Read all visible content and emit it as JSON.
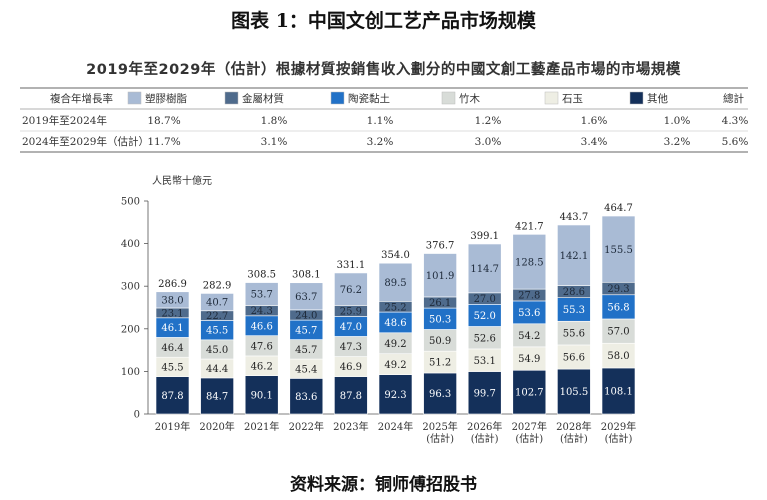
{
  "figure_title": "图表 1：中国文创工艺产品市场规模",
  "source": "资料来源：铜师傅招股书",
  "table": {
    "header_label": "複合年增長率",
    "total_label": "總計",
    "rows": [
      {
        "label": "2019年至2024年",
        "values": [
          "18.7%",
          "1.8%",
          "1.1%",
          "1.2%",
          "1.6%",
          "1.0%",
          "4.3%"
        ]
      },
      {
        "label": "2024年至2029年（估計）",
        "values": [
          "11.7%",
          "3.1%",
          "3.2%",
          "3.0%",
          "3.4%",
          "3.2%",
          "5.6%"
        ]
      }
    ]
  },
  "chart_data": {
    "type": "bar",
    "stacked": true,
    "title": "2019年至2029年（估計）根據材質按銷售收入劃分的中國文創工藝產品市場的市場規模",
    "ylabel": "人民幣十億元",
    "xlabel": "",
    "ylim": [
      0,
      500
    ],
    "yticks": [
      "0",
      "100",
      "200",
      "300",
      "400",
      "500"
    ],
    "categories": [
      "2019年",
      "2020年",
      "2021年",
      "2022年",
      "2023年",
      "2024年",
      "2025年\n(估計)",
      "2026年\n(估計)",
      "2027年\n(估計)",
      "2028年\n(估計)",
      "2029年\n(估計)"
    ],
    "series": [
      {
        "name": "其他",
        "color": "#14305a",
        "values": [
          87.8,
          84.7,
          90.1,
          83.6,
          87.8,
          92.3,
          96.3,
          99.7,
          102.7,
          105.5,
          108.1
        ]
      },
      {
        "name": "石玉",
        "color": "#eeeee4",
        "values": [
          45.5,
          44.4,
          46.2,
          45.4,
          46.9,
          49.2,
          51.2,
          53.1,
          54.9,
          56.6,
          58.0
        ]
      },
      {
        "name": "竹木",
        "color": "#d8dcd8",
        "values": [
          46.4,
          45.0,
          47.6,
          45.7,
          47.3,
          49.2,
          50.9,
          52.6,
          54.2,
          55.6,
          57.0
        ]
      },
      {
        "name": "陶瓷黏土",
        "color": "#2171c7",
        "values": [
          46.1,
          45.5,
          46.6,
          45.7,
          47.0,
          48.6,
          50.3,
          52.0,
          53.6,
          55.3,
          56.8
        ]
      },
      {
        "name": "金屬材質",
        "color": "#4f6b8c",
        "values": [
          23.1,
          22.7,
          24.3,
          24.0,
          25.9,
          25.2,
          26.1,
          27.0,
          27.8,
          28.6,
          29.3
        ]
      },
      {
        "name": "塑膠樹脂",
        "color": "#a9bbd5",
        "values": [
          38.0,
          40.7,
          53.7,
          63.7,
          76.2,
          89.5,
          101.9,
          114.7,
          128.5,
          142.1,
          155.5
        ]
      }
    ],
    "totals": [
      "286.9",
      "282.9",
      "308.5",
      "308.1",
      "331.1",
      "354.0",
      "376.7",
      "399.1",
      "421.7",
      "443.7",
      "464.7"
    ],
    "legend_position": "top"
  }
}
